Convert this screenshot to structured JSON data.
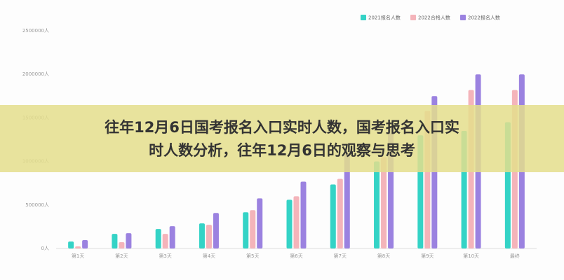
{
  "chart_data": {
    "type": "bar",
    "overlay_title": [
      "往年12月6日国考报名入口实时人数，国考报名入口实",
      "时人数分析，往年12月6日的观察与思考"
    ],
    "categories": [
      "第1天",
      "第2天",
      "第3天",
      "第4天",
      "第5天",
      "第6天",
      "第7天",
      "第8天",
      "第9天",
      "第10天",
      "最终"
    ],
    "series": [
      {
        "name": "2021报名人数",
        "color": "#34d3c6",
        "values": [
          80000,
          168000,
          224000,
          288000,
          416000,
          560000,
          736000,
          1000000,
          1300000,
          1350000,
          1450000
        ]
      },
      {
        "name": "2022合格人数",
        "color": "#f4b4ba",
        "values": [
          24000,
          72000,
          168000,
          272000,
          440000,
          600000,
          800000,
          1050000,
          1580000,
          1820000,
          1820000
        ]
      },
      {
        "name": "2022报名人数",
        "color": "#9b82e0",
        "values": [
          96000,
          176000,
          256000,
          408000,
          576000,
          768000,
          1120000,
          1400000,
          1750000,
          2000000,
          2000000
        ]
      }
    ],
    "ylim": [
      0,
      2500000
    ],
    "yticks": [
      {
        "value": 0,
        "label": "0人"
      },
      {
        "value": 500000,
        "label": "500000人"
      },
      {
        "value": 1000000,
        "label": "1000000人"
      },
      {
        "value": 1500000,
        "label": "1500000人"
      },
      {
        "value": 2000000,
        "label": "2000000人"
      },
      {
        "value": 2500000,
        "label": "2500000人"
      }
    ],
    "grid": false,
    "legend": "top-right"
  }
}
